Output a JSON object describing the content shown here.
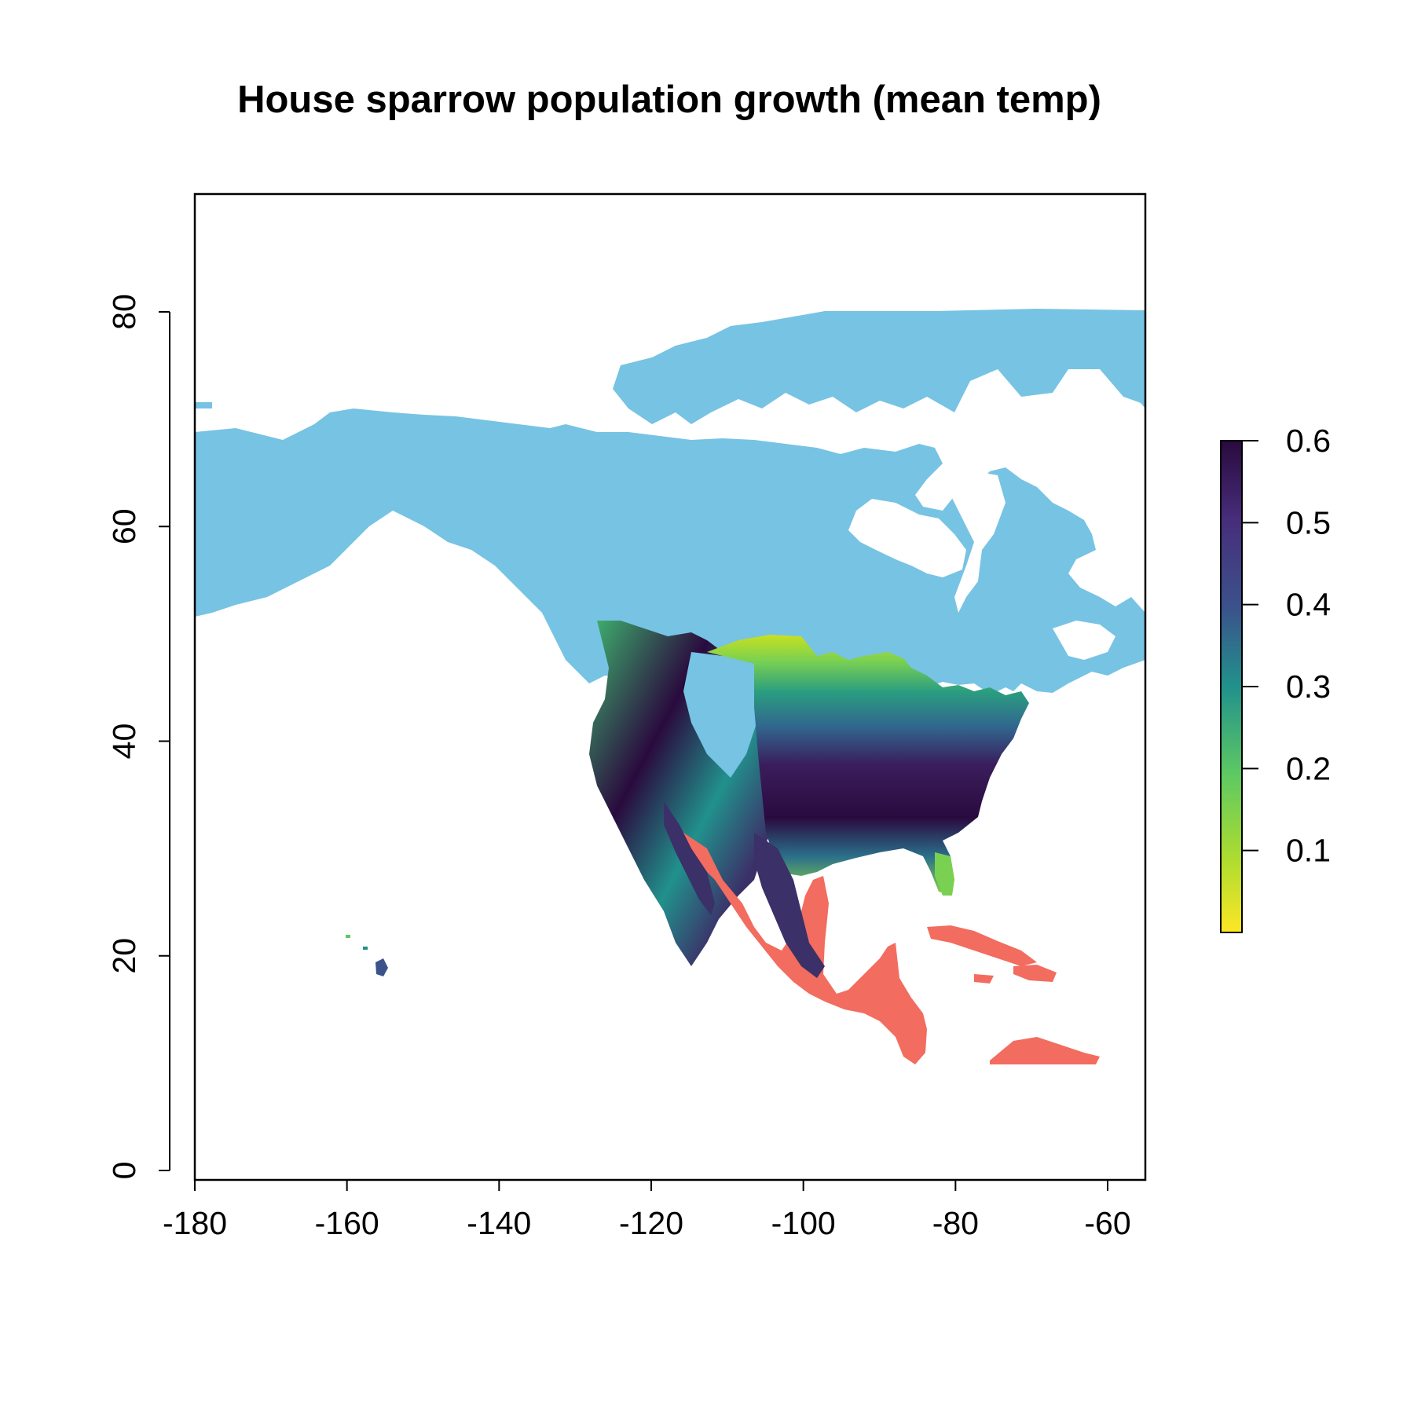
{
  "title": "House sparrow population growth (mean temp)",
  "x_axis": {
    "ticks": [
      -180,
      -160,
      -140,
      -120,
      -100,
      -80,
      -60
    ],
    "labels": [
      "-180",
      "-160",
      "-140",
      "-120",
      "-100",
      "-80",
      "-60"
    ],
    "range": [
      -180,
      -55
    ]
  },
  "y_axis": {
    "ticks": [
      0,
      20,
      40,
      60,
      80
    ],
    "labels": [
      "0",
      "20",
      "40",
      "60",
      "80"
    ],
    "range": [
      0,
      92
    ]
  },
  "legend": {
    "ticks": [
      0.1,
      0.2,
      0.3,
      0.4,
      0.5,
      0.6
    ],
    "labels": [
      "0.1",
      "0.2",
      "0.3",
      "0.4",
      "0.5",
      "0.6"
    ],
    "range": [
      0.0,
      0.6
    ],
    "palette": "viridis (reversed)",
    "colors": [
      "#fde725",
      "#5ec962",
      "#21918c",
      "#3b528b",
      "#440154",
      "#2a0a3e"
    ],
    "placement": "right"
  },
  "map_colors": {
    "no_growth_region": "#77c3e3",
    "tropical_outside_range": "#f26c5f",
    "ocean": "#ffffff"
  }
}
